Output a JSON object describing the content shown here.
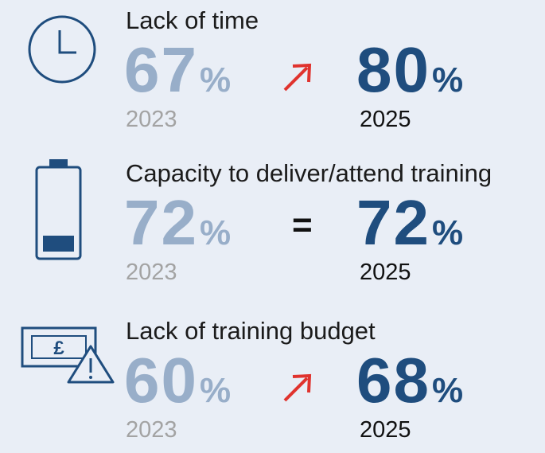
{
  "items": [
    {
      "label": "Lack of time",
      "before": {
        "value": 67,
        "unit": "%",
        "year": "2023"
      },
      "after": {
        "value": 80,
        "unit": "%",
        "year": "2025"
      }
    },
    {
      "label": "Capacity to deliver/attend training",
      "sign": "=",
      "before": {
        "value": 72,
        "unit": "%",
        "year": "2023"
      },
      "after": {
        "value": 72,
        "unit": "%",
        "year": "2025"
      }
    },
    {
      "label": "Lack of training budget",
      "before": {
        "value": 60,
        "unit": "%",
        "year": "2023"
      },
      "after": {
        "value": 68,
        "unit": "%",
        "year": "2025"
      }
    }
  ]
}
